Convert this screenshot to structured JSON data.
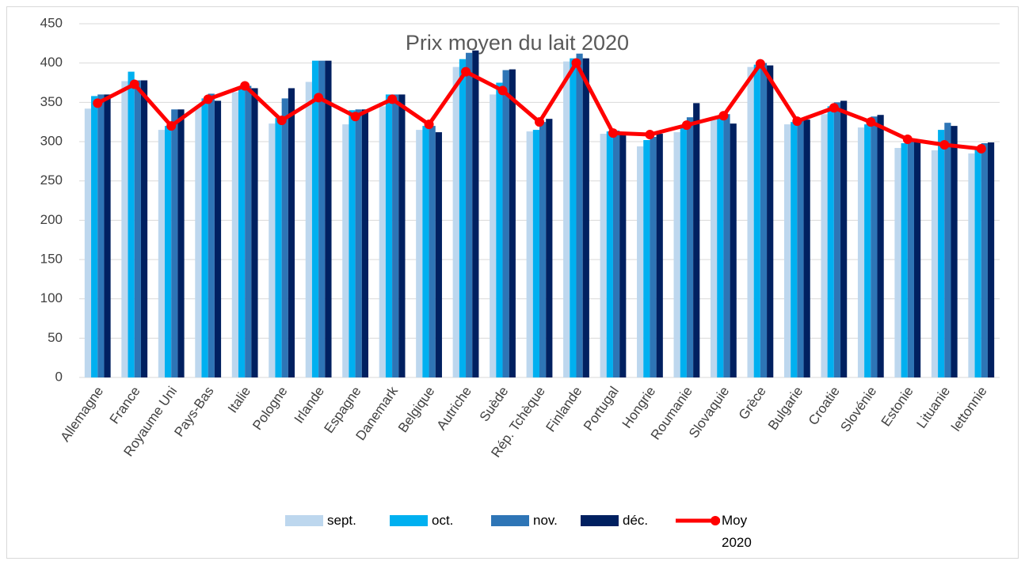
{
  "chart_data": {
    "type": "bar",
    "title": "Prix moyen du lait 2020",
    "categories": [
      "Allemagne",
      "France",
      "Royaume Uni",
      "Pays-Bas",
      "Italie",
      "Pologne",
      "Irlande",
      "Espagne",
      "Danemark",
      "Belgique",
      "Autriche",
      "Suède",
      "Rép. Tchèque",
      "Finlande",
      "Portugal",
      "Hongrie",
      "Roumanie",
      "Slovaquie",
      "Grèce",
      "Bulgarie",
      "Croatie",
      "Slovénie",
      "Estonie",
      "Lituanie",
      "lettonnie"
    ],
    "series": [
      {
        "name": "sept.",
        "color": "#bdd7ee",
        "values": [
          342,
          377,
          315,
          345,
          363,
          323,
          376,
          322,
          345,
          315,
          395,
          360,
          313,
          402,
          310,
          294,
          312,
          330,
          395,
          322,
          335,
          318,
          292,
          289,
          285
        ]
      },
      {
        "name": "oct.",
        "color": "#00b0f0",
        "values": [
          358,
          389,
          320,
          355,
          370,
          330,
          403,
          340,
          360,
          320,
          405,
          375,
          315,
          406,
          313,
          302,
          320,
          333,
          398,
          325,
          345,
          322,
          298,
          315,
          290
        ]
      },
      {
        "name": "nov.",
        "color": "#2e75b6",
        "values": [
          360,
          378,
          341,
          361,
          371,
          355,
          403,
          341,
          360,
          320,
          413,
          391,
          325,
          412,
          314,
          306,
          331,
          335,
          400,
          327,
          350,
          332,
          300,
          324,
          298
        ]
      },
      {
        "name": "déc.",
        "color": "#002060",
        "values": [
          360,
          378,
          341,
          352,
          368,
          368,
          403,
          341,
          360,
          312,
          416,
          392,
          329,
          406,
          312,
          310,
          349,
          323,
          397,
          328,
          352,
          334,
          302,
          320,
          299
        ]
      },
      {
        "name": "Moy 2020",
        "type": "line",
        "color": "#ff0000",
        "values": [
          349,
          373,
          320,
          354,
          371,
          327,
          356,
          332,
          354,
          322,
          389,
          365,
          325,
          400,
          311,
          309,
          321,
          333,
          399,
          326,
          343,
          325,
          303,
          296,
          291
        ]
      }
    ],
    "ylim": [
      0,
      450
    ],
    "yticks": [
      0,
      50,
      100,
      150,
      200,
      250,
      300,
      350,
      400,
      450
    ],
    "grid": true,
    "legend": "bottom"
  }
}
